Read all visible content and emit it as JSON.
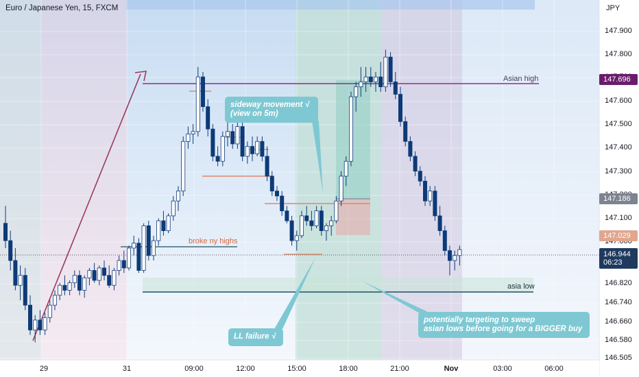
{
  "header": {
    "symbol": "Euro / Japanese Yen, 15, FXCM",
    "currency": "JPY"
  },
  "price_axis": {
    "ticks": [
      "147.900",
      "147.800",
      "147.700",
      "147.600",
      "147.500",
      "147.400",
      "147.300",
      "147.200",
      "147.100",
      "147.000",
      "146.900",
      "146.820",
      "146.740",
      "146.660",
      "146.580",
      "146.505"
    ],
    "tags": {
      "asian_high": "147.696",
      "last": "147.186",
      "orange": "147.029",
      "current": "146.944",
      "countdown": "06:23"
    }
  },
  "time_axis": [
    "29",
    "31",
    "09:00",
    "12:00",
    "15:00",
    "18:00",
    "21:00",
    "Nov",
    "03:00",
    "06:00"
  ],
  "annotations": {
    "asian_high": "Asian high",
    "asia_low": "asia low",
    "broke_ny_highs": "broke ny highs",
    "sideway": "sideway movement √\n(view on 5m)",
    "ll_failure": "LL failure √",
    "targeting": "potentially targeting to sweep\nasian lows before going for a BIGGER buy"
  },
  "colors": {
    "up": "#ffffff",
    "down": "#0d3a78",
    "asian_high_line": "#8e2e8c",
    "asia_low_line": "#1c4f63",
    "orange_line": "#e0876a",
    "callout": "#7ec8d3",
    "trend_arrow": "#9b3a5a"
  },
  "chart_data": {
    "type": "candlestick",
    "symbol": "EUR/JPY",
    "timeframe": "15",
    "ylim": [
      146.505,
      147.95
    ],
    "levels": {
      "asian_high": 147.696,
      "asia_low": 146.78,
      "last": 147.186,
      "current": 146.944
    },
    "candles": [
      [
        147.05,
        147.12,
        146.95,
        146.98
      ],
      [
        146.98,
        147.02,
        146.86,
        146.9
      ],
      [
        146.9,
        146.95,
        146.78,
        146.8
      ],
      [
        146.8,
        146.88,
        146.74,
        146.84
      ],
      [
        146.84,
        146.87,
        146.7,
        146.72
      ],
      [
        146.72,
        146.76,
        146.6,
        146.62
      ],
      [
        146.62,
        146.68,
        146.57,
        146.66
      ],
      [
        146.66,
        146.7,
        146.6,
        146.62
      ],
      [
        146.62,
        146.69,
        146.6,
        146.67
      ],
      [
        146.67,
        146.74,
        146.65,
        146.72
      ],
      [
        146.72,
        146.78,
        146.7,
        146.76
      ],
      [
        146.76,
        146.81,
        146.74,
        146.8
      ],
      [
        146.8,
        146.84,
        146.76,
        146.78
      ],
      [
        146.78,
        146.82,
        146.76,
        146.81
      ],
      [
        146.81,
        146.86,
        146.79,
        146.84
      ],
      [
        146.84,
        146.86,
        146.76,
        146.78
      ],
      [
        146.78,
        146.84,
        146.75,
        146.83
      ],
      [
        146.83,
        146.87,
        146.8,
        146.86
      ],
      [
        146.86,
        146.89,
        146.81,
        146.82
      ],
      [
        146.82,
        146.88,
        146.8,
        146.87
      ],
      [
        146.87,
        146.9,
        146.82,
        146.84
      ],
      [
        146.84,
        146.88,
        146.79,
        146.8
      ],
      [
        146.8,
        146.87,
        146.78,
        146.86
      ],
      [
        146.86,
        146.92,
        146.84,
        146.9
      ],
      [
        146.9,
        146.94,
        146.85,
        146.87
      ],
      [
        146.87,
        146.96,
        146.86,
        146.95
      ],
      [
        146.95,
        147.0,
        146.92,
        146.97
      ],
      [
        146.97,
        146.99,
        146.85,
        146.86
      ],
      [
        146.86,
        147.05,
        146.85,
        147.04
      ],
      [
        147.04,
        147.06,
        146.9,
        146.92
      ],
      [
        146.92,
        147.0,
        146.9,
        146.98
      ],
      [
        146.98,
        147.07,
        146.96,
        147.06
      ],
      [
        147.06,
        147.1,
        147.0,
        147.02
      ],
      [
        147.02,
        147.09,
        147.01,
        147.08
      ],
      [
        147.08,
        147.16,
        147.06,
        147.14
      ],
      [
        147.14,
        147.2,
        147.1,
        147.18
      ],
      [
        147.18,
        147.4,
        147.16,
        147.38
      ],
      [
        147.38,
        147.44,
        147.35,
        147.41
      ],
      [
        147.41,
        147.45,
        147.37,
        147.42
      ],
      [
        147.42,
        147.68,
        147.4,
        147.64
      ],
      [
        147.64,
        147.66,
        147.5,
        147.52
      ],
      [
        147.52,
        147.55,
        147.4,
        147.43
      ],
      [
        147.43,
        147.45,
        147.3,
        147.32
      ],
      [
        147.32,
        147.36,
        147.28,
        147.3
      ],
      [
        147.3,
        147.42,
        147.28,
        147.4
      ],
      [
        147.4,
        147.46,
        147.36,
        147.42
      ],
      [
        147.42,
        147.45,
        147.35,
        147.37
      ],
      [
        147.37,
        147.46,
        147.35,
        147.44
      ],
      [
        147.44,
        147.46,
        147.3,
        147.32
      ],
      [
        147.32,
        147.38,
        147.29,
        147.36
      ],
      [
        147.36,
        147.4,
        147.3,
        147.33
      ],
      [
        147.33,
        147.4,
        147.32,
        147.38
      ],
      [
        147.38,
        147.4,
        147.3,
        147.32
      ],
      [
        147.32,
        147.36,
        147.22,
        147.24
      ],
      [
        147.24,
        147.26,
        147.16,
        147.18
      ],
      [
        147.18,
        147.2,
        147.14,
        147.16
      ],
      [
        147.16,
        147.18,
        147.08,
        147.1
      ],
      [
        147.1,
        147.12,
        147.05,
        147.06
      ],
      [
        147.06,
        147.08,
        146.96,
        146.98
      ],
      [
        146.98,
        147.02,
        146.94,
        147.0
      ],
      [
        147.0,
        147.1,
        146.99,
        147.08
      ],
      [
        147.08,
        147.12,
        147.04,
        147.06
      ],
      [
        147.06,
        147.1,
        147.02,
        147.04
      ],
      [
        147.04,
        147.12,
        147.03,
        147.1
      ],
      [
        147.1,
        147.12,
        147.0,
        147.02
      ],
      [
        147.02,
        147.05,
        146.98,
        147.04
      ],
      [
        147.04,
        147.08,
        147.0,
        147.06
      ],
      [
        147.06,
        147.16,
        147.05,
        147.14
      ],
      [
        147.14,
        147.26,
        147.12,
        147.24
      ],
      [
        147.24,
        147.32,
        147.2,
        147.3
      ],
      [
        147.3,
        147.58,
        147.28,
        147.56
      ],
      [
        147.56,
        147.62,
        147.5,
        147.6
      ],
      [
        147.6,
        147.68,
        147.56,
        147.62
      ],
      [
        147.62,
        147.68,
        147.58,
        147.64
      ],
      [
        147.64,
        147.68,
        147.6,
        147.62
      ],
      [
        147.62,
        147.66,
        147.58,
        147.64
      ],
      [
        147.64,
        147.7,
        147.58,
        147.6
      ],
      [
        147.6,
        147.75,
        147.58,
        147.72
      ],
      [
        147.72,
        147.74,
        147.6,
        147.62
      ],
      [
        147.62,
        147.66,
        147.55,
        147.57
      ],
      [
        147.57,
        147.6,
        147.44,
        147.46
      ],
      [
        147.46,
        147.48,
        147.36,
        147.38
      ],
      [
        147.38,
        147.4,
        147.3,
        147.32
      ],
      [
        147.32,
        147.34,
        147.24,
        147.26
      ],
      [
        147.26,
        147.28,
        147.2,
        147.22
      ],
      [
        147.22,
        147.24,
        147.12,
        147.14
      ],
      [
        147.14,
        147.2,
        147.12,
        147.18
      ],
      [
        147.18,
        147.2,
        147.06,
        147.08
      ],
      [
        147.08,
        147.12,
        147.0,
        147.02
      ],
      [
        147.02,
        147.04,
        146.92,
        146.94
      ],
      [
        146.94,
        146.96,
        146.84,
        146.9
      ],
      [
        146.9,
        146.94,
        146.86,
        146.92
      ],
      [
        146.92,
        146.96,
        146.88,
        146.944
      ]
    ]
  }
}
